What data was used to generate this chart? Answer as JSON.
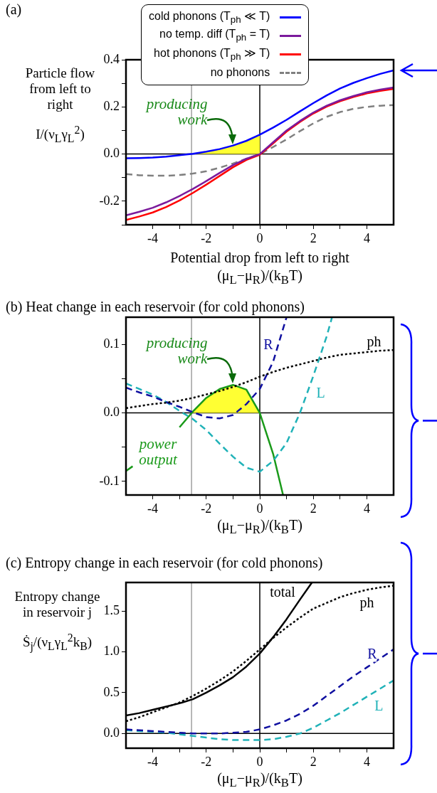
{
  "chart_data": [
    {
      "type": "line",
      "title": "(a)",
      "xlabel": "Potential drop from left to right\n(μ$_{L}$−μ$_{R}$)/(k$_{B}$T)",
      "ylabel": "Particle flow from left to right\nI/(ν$_{L}$γ$_{L}$$^{2}$)",
      "x": [
        -5,
        -4.5,
        -4,
        -3.5,
        -3,
        -2.5,
        -2,
        -1.5,
        -1,
        -0.5,
        0,
        0.5,
        1,
        1.5,
        2,
        2.5,
        3,
        3.5,
        4,
        4.5,
        5
      ],
      "series": [
        {
          "type": "area",
          "color": "#ffff33",
          "x": [
            -2.55,
            -2,
            -1.5,
            -1,
            -0.5,
            0
          ],
          "values": [
            0,
            0.01,
            0.021,
            0.036,
            0.056,
            0.082
          ]
        },
        {
          "name": "cold phonons (T$_{ph}$ ≪ T)",
          "color": "#0000ff",
          "values": [
            -0.018,
            -0.017,
            -0.015,
            -0.011,
            -0.005,
            0.001,
            0.01,
            0.021,
            0.036,
            0.056,
            0.082,
            0.112,
            0.145,
            0.181,
            0.216,
            0.249,
            0.278,
            0.302,
            0.322,
            0.34,
            0.355
          ]
        },
        {
          "name": "no temp. diff (T$_{ph}$ = T)",
          "color": "#7b1a9c",
          "values": [
            -0.26,
            -0.245,
            -0.228,
            -0.205,
            -0.178,
            -0.148,
            -0.115,
            -0.08,
            -0.047,
            -0.02,
            0.0,
            0.05,
            0.1,
            0.14,
            0.176,
            0.205,
            0.228,
            0.246,
            0.262,
            0.273,
            0.282
          ]
        },
        {
          "name": "hot phonons (T$_{ph}$ ≫ T)",
          "color": "#ff0000",
          "values": [
            -0.28,
            -0.265,
            -0.248,
            -0.225,
            -0.197,
            -0.165,
            -0.13,
            -0.093,
            -0.056,
            -0.025,
            -0.003,
            0.045,
            0.095,
            0.136,
            0.172,
            0.201,
            0.224,
            0.242,
            0.257,
            0.268,
            0.276
          ]
        },
        {
          "name": "no phonons",
          "color": "#808080",
          "line_style": "dashed",
          "values": [
            -0.085,
            -0.09,
            -0.092,
            -0.092,
            -0.089,
            -0.083,
            -0.073,
            -0.058,
            -0.04,
            -0.02,
            0.0,
            0.03,
            0.062,
            0.097,
            0.13,
            0.158,
            0.178,
            0.192,
            0.2,
            0.205,
            0.208
          ]
        }
      ],
      "xlim": [
        -5,
        5
      ],
      "xticks": [
        -4,
        {
          "value": -3,
          "label": null
        },
        -2,
        {
          "value": -1,
          "label": null
        },
        0,
        {
          "value": 1,
          "label": null
        },
        2,
        {
          "value": 3,
          "label": null
        },
        4
      ],
      "ylim": [
        -0.3,
        0.4
      ],
      "yticks": [
        {
          "value": -0.3,
          "label": null
        },
        -0.2,
        {
          "value": -0.1,
          "label": null
        },
        {
          "value": 0,
          "label": "0.0"
        },
        {
          "value": 0.1,
          "label": null
        },
        0.2,
        {
          "value": 0.3,
          "label": null
        },
        0.4
      ],
      "ref_lines": [
        {
          "axis": "y",
          "value": 0,
          "color": "#000000"
        },
        {
          "axis": "x",
          "value": 0,
          "color": "#000000"
        },
        {
          "axis": "x",
          "value": -2.55,
          "color": "#a0a0a0"
        }
      ],
      "annotations": [
        {
          "text": "producing work",
          "x": -1,
          "y": 0.036
        }
      ],
      "grid": false,
      "legend": "top"
    },
    {
      "type": "line",
      "title": "(b) Heat change in each reservoir (for cold phonons)",
      "xlabel": "(μ$_{L}$−μ$_{R}$)/(k$_{B}$T)",
      "x": [
        -5,
        -4.5,
        -4,
        -3.5,
        -3,
        -2.5,
        -2,
        -1.5,
        -1,
        -0.5,
        0,
        0.5,
        1,
        1.5,
        2,
        2.5,
        3,
        3.5,
        4,
        4.5,
        5
      ],
      "series": [
        {
          "type": "area",
          "color": "#ffff33",
          "x": [
            -2.55,
            -2,
            -1.5,
            -1,
            -0.5,
            0
          ],
          "values": [
            0,
            0.022,
            0.035,
            0.041,
            0.034,
            0
          ]
        },
        {
          "name": "ph",
          "color": "#000000",
          "line_style": "dotted",
          "values": [
            0.007,
            0.01,
            0.013,
            0.015,
            0.018,
            0.022,
            0.027,
            0.032,
            0.038,
            0.045,
            0.053,
            0.06,
            0.066,
            0.071,
            0.076,
            0.081,
            0.085,
            0.087,
            0.089,
            0.091,
            0.092
          ]
        },
        {
          "name": "R",
          "color": "#1010a0",
          "line_style": "dashed",
          "x": [
            -5,
            -4.5,
            -4,
            -3.5,
            -3,
            -2.5,
            -2,
            -1.5,
            -1,
            -0.5,
            0,
            0.5,
            1
          ],
          "values": [
            0.037,
            0.03,
            0.024,
            0.016,
            0.009,
            0.001,
            -0.006,
            -0.008,
            -0.003,
            0.013,
            0.035,
            0.075,
            0.14
          ]
        },
        {
          "name": "L",
          "color": "#20b2b8",
          "line_style": "dashed",
          "x": [
            -5,
            -4.5,
            -4,
            -3.5,
            -3,
            -2.5,
            -2,
            -1.5,
            -1,
            -0.5,
            0,
            0.5,
            1,
            1.5,
            2,
            2.5,
            2.7
          ],
          "values": [
            0.043,
            0.035,
            0.027,
            0.016,
            0.003,
            -0.009,
            -0.025,
            -0.045,
            -0.064,
            -0.08,
            -0.086,
            -0.07,
            -0.044,
            0,
            0.054,
            0.112,
            0.14
          ]
        },
        {
          "name": "power output",
          "color": "#1a9a1a",
          "x": [
            -5,
            -4.75,
            -4,
            -3.5,
            -3,
            -2.5,
            -2,
            -1.5,
            -1,
            -0.5,
            0,
            0.5,
            0.87
          ],
          "values": [
            -0.085,
            -0.078,
            null,
            null,
            -0.021,
            0.002,
            0.022,
            0.035,
            0.041,
            0.034,
            0,
            -0.06,
            -0.12
          ]
        }
      ],
      "xlim": [
        -5,
        5
      ],
      "xticks": [
        -4,
        {
          "value": -3,
          "label": null
        },
        -2,
        {
          "value": -1,
          "label": null
        },
        0,
        {
          "value": 1,
          "label": null
        },
        2,
        {
          "value": 3,
          "label": null
        },
        4
      ],
      "ylim": [
        -0.12,
        0.14
      ],
      "yticks": [
        -0.1,
        {
          "value": -0.05,
          "label": null
        },
        {
          "value": 0,
          "label": "0.0"
        },
        {
          "value": 0.05,
          "label": null
        },
        0.1
      ],
      "ref_lines": [
        {
          "axis": "y",
          "value": 0,
          "color": "#000000"
        },
        {
          "axis": "x",
          "value": 0,
          "color": "#000000"
        },
        {
          "axis": "x",
          "value": -2.55,
          "color": "#a0a0a0"
        }
      ],
      "annotations": [
        {
          "text": "producing work",
          "x": -1,
          "y": 0.041
        }
      ],
      "grid": false
    },
    {
      "type": "line",
      "title": "(c) Entropy change in each reservoir (for cold phonons)",
      "xlabel": "(μ$_{L}$−μ$_{R}$)/(k$_{B}$T)",
      "ylabel": "Entropy change in reservoir j\nṠ$_{j}$/(ν$_{L}$γ$_{L}$$^{2}$k$_{B}$)",
      "x": [
        -5,
        -4.5,
        -4,
        -3.5,
        -3,
        -2.5,
        -2,
        -1.5,
        -1,
        -0.5,
        0,
        0.5,
        1,
        1.5,
        2,
        2.5,
        3,
        3.5,
        4,
        4.5,
        5
      ],
      "series": [
        {
          "name": "total",
          "color": "#000000",
          "x": [
            -5,
            -4.5,
            -4,
            -3.5,
            -3,
            -2.5,
            -2,
            -1.5,
            -1,
            -0.5,
            0,
            0.5,
            1,
            1.5,
            1.95
          ],
          "values": [
            0.22,
            0.25,
            0.29,
            0.33,
            0.37,
            0.42,
            0.5,
            0.59,
            0.69,
            0.82,
            0.98,
            1.18,
            1.4,
            1.64,
            1.85
          ]
        },
        {
          "name": "ph",
          "color": "#000000",
          "line_style": "dotted",
          "values": [
            0.15,
            0.2,
            0.26,
            0.32,
            0.38,
            0.46,
            0.55,
            0.65,
            0.76,
            0.89,
            1.03,
            1.17,
            1.3,
            1.42,
            1.53,
            1.6,
            1.67,
            1.72,
            1.76,
            1.79,
            1.81
          ]
        },
        {
          "name": "R",
          "color": "#1010a0",
          "line_style": "dashed",
          "values": [
            0.05,
            0.04,
            0.03,
            0.02,
            0.01,
            0.0,
            0,
            0.0,
            0.01,
            0.02,
            0.05,
            0.1,
            0.16,
            0.24,
            0.34,
            0.46,
            0.58,
            0.7,
            0.81,
            0.92,
            1.03
          ]
        },
        {
          "name": "L",
          "color": "#20b2b8",
          "line_style": "dashed",
          "values": [
            0.04,
            0.03,
            0.02,
            0.01,
            -0.01,
            -0.03,
            -0.05,
            -0.07,
            -0.08,
            -0.08,
            -0.08,
            -0.07,
            -0.04,
            0,
            0.07,
            0.16,
            0.25,
            0.35,
            0.45,
            0.55,
            0.65
          ]
        }
      ],
      "xlim": [
        -5,
        5
      ],
      "xticks": [
        -4,
        {
          "value": -3,
          "label": null
        },
        -2,
        {
          "value": -1,
          "label": null
        },
        0,
        {
          "value": 1,
          "label": null
        },
        2,
        {
          "value": 3,
          "label": null
        },
        4
      ],
      "ylim": [
        -0.18,
        1.85
      ],
      "yticks": [
        {
          "value": 0,
          "label": "0.0"
        },
        0.5,
        {
          "value": 1,
          "label": "1.0"
        },
        1.5
      ],
      "ref_lines": [
        {
          "axis": "y",
          "value": 0,
          "color": "#000000"
        },
        {
          "axis": "x",
          "value": 0,
          "color": "#000000"
        },
        {
          "axis": "x",
          "value": -2.55,
          "color": "#a0a0a0"
        }
      ],
      "grid": false
    }
  ]
}
